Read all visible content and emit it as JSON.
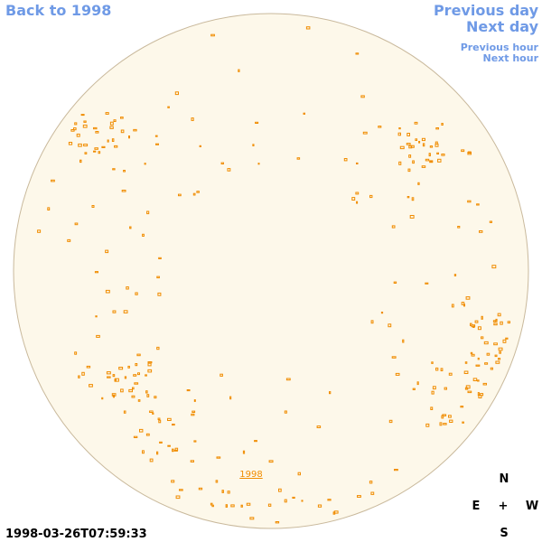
{
  "nav": {
    "back": "Back to 1998",
    "previous_day": "Previous day",
    "next_day": "Next day",
    "previous_hour": "Previous hour",
    "next_hour": "Next hour"
  },
  "disk": {
    "year_label": "1998"
  },
  "compass": {
    "north": "N",
    "east": "E",
    "center": "+",
    "west": "W",
    "south": "S"
  },
  "timestamp": "1998-03-26T07:59:33"
}
